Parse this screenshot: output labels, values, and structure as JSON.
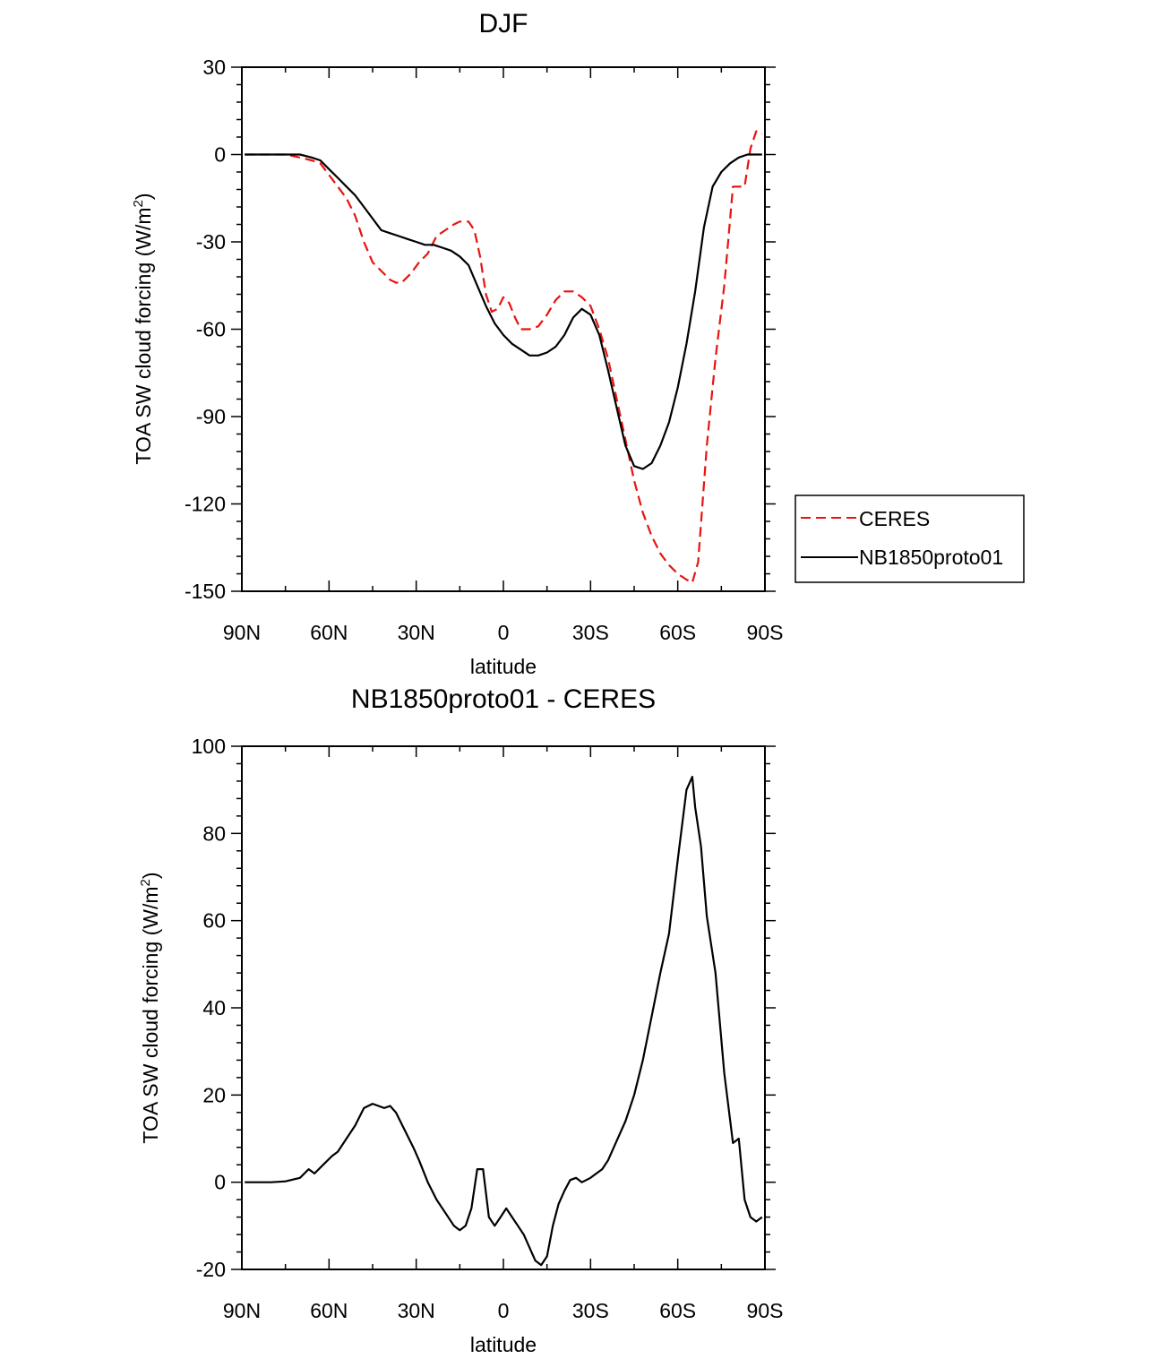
{
  "chart_data": [
    {
      "type": "line",
      "title": "DJF",
      "xlabel": "latitude",
      "ylabel": "TOA SW cloud forcing (W/m",
      "ylabel_sup": "2",
      "ylabel_close": ")",
      "xlim": [
        90,
        -90
      ],
      "ylim": [
        -150,
        30
      ],
      "xticks": [
        90,
        60,
        30,
        0,
        -30,
        -60,
        -90
      ],
      "xtick_labels": [
        "90N",
        "60N",
        "30N",
        "0",
        "30S",
        "60S",
        "90S"
      ],
      "yticks": [
        30,
        0,
        -30,
        -60,
        -90,
        -120,
        -150
      ],
      "ytick_labels": [
        "30",
        "0",
        "-30",
        "-60",
        "-90",
        "-120",
        "-150"
      ],
      "grid": false,
      "legend": "right",
      "series": [
        {
          "name": "CERES",
          "color": "#e8130f",
          "dash": "dashed",
          "x": [
            89,
            85,
            80,
            75,
            70,
            66,
            63,
            60,
            57,
            54,
            51,
            48,
            45,
            42,
            39,
            37,
            35,
            32,
            29,
            26,
            23,
            20,
            17,
            15,
            12,
            10,
            8,
            6,
            4,
            2,
            0,
            -2,
            -4,
            -6,
            -9,
            -12,
            -15,
            -18,
            -21,
            -24,
            -27,
            -30,
            -33,
            -36,
            -39,
            -42,
            -45,
            -48,
            -51,
            -54,
            -57,
            -60,
            -63,
            -65,
            -67,
            -70,
            -73,
            -76,
            -79,
            -81,
            -83,
            -85,
            -87,
            -89
          ],
          "values": [
            0,
            0,
            0,
            0,
            -1,
            -2,
            -3,
            -7,
            -11,
            -15,
            -21,
            -30,
            -37,
            -40,
            -43,
            -44,
            -44,
            -41,
            -37,
            -34,
            -28,
            -26,
            -24,
            -23,
            -23,
            -26,
            -35,
            -48,
            -54,
            -53,
            -49,
            -51,
            -56,
            -60,
            -60,
            -59,
            -55,
            -50,
            -47,
            -47,
            -49,
            -52,
            -60,
            -70,
            -84,
            -98,
            -112,
            -123,
            -131,
            -137,
            -141,
            -144,
            -146,
            -147,
            -140,
            -100,
            -70,
            -45,
            -11,
            -11,
            -11,
            2,
            8,
            7
          ]
        },
        {
          "name": "NB1850proto01",
          "color": "#000000",
          "dash": "solid",
          "x": [
            89,
            85,
            80,
            75,
            70,
            66,
            63,
            60,
            57,
            54,
            51,
            48,
            45,
            42,
            39,
            36,
            33,
            30,
            27,
            24,
            21,
            18,
            15,
            12,
            9,
            6,
            3,
            0,
            -3,
            -6,
            -9,
            -12,
            -15,
            -18,
            -21,
            -24,
            -27,
            -30,
            -33,
            -36,
            -39,
            -42,
            -45,
            -48,
            -51,
            -54,
            -57,
            -60,
            -63,
            -66,
            -69,
            -72,
            -75,
            -78,
            -81,
            -84,
            -87,
            -89
          ],
          "values": [
            0,
            0,
            0,
            0,
            0,
            -1,
            -2,
            -5,
            -8,
            -11,
            -14,
            -18,
            -22,
            -26,
            -27,
            -28,
            -29,
            -30,
            -31,
            -31,
            -32,
            -33,
            -35,
            -38,
            -45,
            -52,
            -58,
            -62,
            -65,
            -67,
            -69,
            -69,
            -68,
            -66,
            -62,
            -56,
            -53,
            -55,
            -62,
            -74,
            -87,
            -100,
            -107,
            -108,
            -106,
            -100,
            -92,
            -80,
            -65,
            -47,
            -25,
            -11,
            -6,
            -3,
            -1,
            0,
            0,
            0
          ]
        }
      ]
    },
    {
      "type": "line",
      "title": "NB1850proto01 - CERES",
      "xlabel": "latitude",
      "ylabel": "TOA SW cloud forcing (W/m",
      "ylabel_sup": "2",
      "ylabel_close": ")",
      "xlim": [
        90,
        -90
      ],
      "ylim": [
        -20,
        100
      ],
      "xticks": [
        90,
        60,
        30,
        0,
        -30,
        -60,
        -90
      ],
      "xtick_labels": [
        "90N",
        "60N",
        "30N",
        "0",
        "30S",
        "60S",
        "90S"
      ],
      "yticks": [
        100,
        80,
        60,
        40,
        20,
        0,
        -20
      ],
      "ytick_labels": [
        "100",
        "80",
        "60",
        "40",
        "20",
        "0",
        "-20"
      ],
      "grid": false,
      "series": [
        {
          "color": "#000000",
          "dash": "solid",
          "x": [
            89,
            85,
            80,
            75,
            70,
            67,
            65,
            62,
            59,
            57,
            54,
            51,
            48,
            45,
            43,
            41,
            39,
            37,
            34,
            31,
            29,
            26,
            23,
            20,
            17,
            15,
            13,
            11,
            9,
            7,
            5,
            3,
            1,
            -1,
            -3,
            -5,
            -7,
            -9,
            -11,
            -13,
            -15,
            -17,
            -19,
            -21,
            -23,
            -25,
            -27,
            -30,
            -32,
            -34,
            -36,
            -38,
            -40,
            -42,
            -45,
            -48,
            -51,
            -54,
            -57,
            -60,
            -63,
            -65,
            -66,
            -68,
            -70,
            -73,
            -76,
            -79,
            -81,
            -83,
            -85,
            -87,
            -89
          ],
          "values": [
            0,
            0,
            0,
            0.2,
            1,
            3,
            2,
            4,
            6,
            7,
            10,
            13,
            17,
            18,
            17.5,
            17,
            17.5,
            16,
            12,
            8,
            5,
            0,
            -4,
            -7,
            -10,
            -11,
            -10,
            -6,
            3,
            3,
            -8,
            -10,
            -8,
            -6,
            -8,
            -10,
            -12,
            -15,
            -18,
            -19,
            -17,
            -10,
            -5,
            -2,
            0.5,
            1,
            0,
            1,
            2,
            3,
            5,
            8,
            11,
            14,
            20,
            28,
            38,
            48,
            57,
            74,
            90,
            93,
            86,
            77,
            61,
            48,
            25,
            9,
            10,
            -4,
            -8,
            -9,
            -8
          ]
        }
      ]
    }
  ]
}
